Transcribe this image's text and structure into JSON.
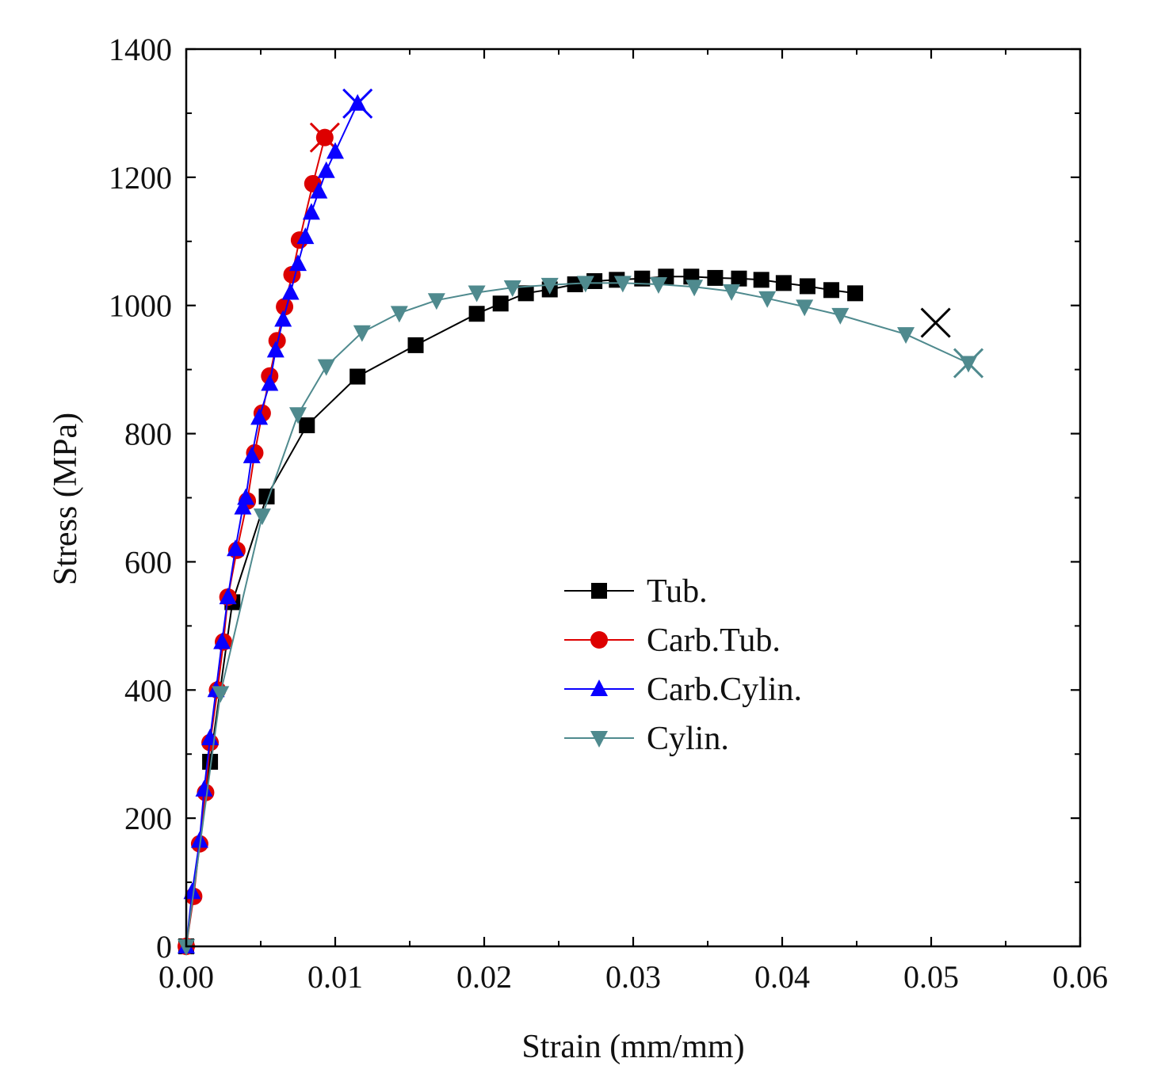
{
  "chart_data": {
    "type": "line",
    "title": "",
    "xlabel": "Strain (mm/mm)",
    "ylabel": "Stress (MPa)",
    "xlim": [
      0,
      0.06
    ],
    "ylim": [
      0,
      1400
    ],
    "x_ticks": [
      "0.00",
      "0.01",
      "0.02",
      "0.03",
      "0.04",
      "0.05",
      "0.06"
    ],
    "y_ticks": [
      "0",
      "200",
      "400",
      "600",
      "800",
      "1000",
      "1200",
      "1400"
    ],
    "grid": false,
    "legend_position": "center-right",
    "series": [
      {
        "name": "Tub.",
        "color": "#000000",
        "marker": "square",
        "fracture": [
          0.0503,
          973
        ],
        "points": [
          [
            0.0,
            0
          ],
          [
            0.0016,
            288
          ],
          [
            0.0031,
            537
          ],
          [
            0.0054,
            702
          ],
          [
            0.0081,
            813
          ],
          [
            0.0115,
            889
          ],
          [
            0.0154,
            938
          ],
          [
            0.0195,
            987
          ],
          [
            0.0211,
            1003
          ],
          [
            0.0228,
            1019
          ],
          [
            0.0244,
            1025
          ],
          [
            0.0261,
            1033
          ],
          [
            0.0274,
            1038
          ],
          [
            0.0289,
            1040
          ],
          [
            0.0306,
            1042
          ],
          [
            0.0322,
            1045
          ],
          [
            0.0339,
            1045
          ],
          [
            0.0355,
            1043
          ],
          [
            0.0371,
            1042
          ],
          [
            0.0386,
            1040
          ],
          [
            0.0401,
            1035
          ],
          [
            0.0417,
            1030
          ],
          [
            0.0433,
            1024
          ],
          [
            0.0449,
            1019
          ]
        ]
      },
      {
        "name": "Carb.Tub.",
        "color": "#dd0000",
        "marker": "circle",
        "fracture": [
          0.0093,
          1262
        ],
        "points": [
          [
            0.0,
            0
          ],
          [
            0.0005,
            78
          ],
          [
            0.0009,
            160
          ],
          [
            0.0013,
            240
          ],
          [
            0.0016,
            318
          ],
          [
            0.0021,
            400
          ],
          [
            0.0025,
            475
          ],
          [
            0.0028,
            545
          ],
          [
            0.0034,
            618
          ],
          [
            0.0041,
            695
          ],
          [
            0.0046,
            770
          ],
          [
            0.0051,
            832
          ],
          [
            0.0056,
            890
          ],
          [
            0.0061,
            945
          ],
          [
            0.0066,
            998
          ],
          [
            0.0071,
            1048
          ],
          [
            0.0076,
            1102
          ],
          [
            0.0085,
            1190
          ],
          [
            0.0093,
            1262
          ]
        ]
      },
      {
        "name": "Carb.Cylin.",
        "color": "#0a00ff",
        "marker": "triangle-up",
        "fracture": [
          0.0115,
          1315
        ],
        "points": [
          [
            0.0,
            0
          ],
          [
            0.0004,
            85
          ],
          [
            0.0009,
            165
          ],
          [
            0.0012,
            245
          ],
          [
            0.0016,
            325
          ],
          [
            0.002,
            400
          ],
          [
            0.0024,
            475
          ],
          [
            0.0028,
            545
          ],
          [
            0.0033,
            620
          ],
          [
            0.0038,
            685
          ],
          [
            0.004,
            700
          ],
          [
            0.0044,
            765
          ],
          [
            0.0049,
            825
          ],
          [
            0.0056,
            878
          ],
          [
            0.006,
            930
          ],
          [
            0.0065,
            978
          ],
          [
            0.007,
            1020
          ],
          [
            0.0075,
            1065
          ],
          [
            0.008,
            1107
          ],
          [
            0.0084,
            1145
          ],
          [
            0.0089,
            1178
          ],
          [
            0.0094,
            1210
          ],
          [
            0.01,
            1240
          ],
          [
            0.0115,
            1315
          ]
        ]
      },
      {
        "name": "Cylin.",
        "color": "#4f8a8e",
        "marker": "triangle-down",
        "fracture": [
          0.0525,
          910
        ],
        "points": [
          [
            0.0,
            0
          ],
          [
            0.0023,
            395
          ],
          [
            0.0051,
            672
          ],
          [
            0.0075,
            830
          ],
          [
            0.0094,
            905
          ],
          [
            0.0118,
            958
          ],
          [
            0.0143,
            988
          ],
          [
            0.0168,
            1008
          ],
          [
            0.0195,
            1020
          ],
          [
            0.0219,
            1028
          ],
          [
            0.0244,
            1032
          ],
          [
            0.0268,
            1035
          ],
          [
            0.0293,
            1035
          ],
          [
            0.0317,
            1033
          ],
          [
            0.0341,
            1029
          ],
          [
            0.0366,
            1022
          ],
          [
            0.039,
            1011
          ],
          [
            0.0415,
            998
          ],
          [
            0.0439,
            985
          ],
          [
            0.0483,
            955
          ],
          [
            0.0525,
            910
          ]
        ]
      }
    ]
  }
}
